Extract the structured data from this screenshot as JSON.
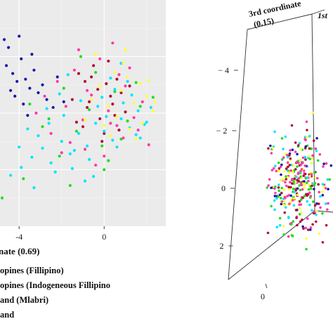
{
  "chart_data": [
    {
      "type": "scatter",
      "xlabel": "nate (0.69)",
      "x_ticks": [
        "-4",
        "0"
      ],
      "xlim": [
        -4.9,
        2.9
      ],
      "ylim": [
        -10,
        10
      ],
      "grid": true,
      "legend": {
        "placement": "bottom-left",
        "entries": [
          {
            "label": "opines (Fillipino)",
            "color": "#ff3aa8"
          },
          {
            "label": "opines (Indogeneous Fillipino",
            "color": "#22dd22"
          },
          {
            "label": "and (Mlabri)",
            "color": "#00e5ff"
          },
          {
            "label": "and",
            "color": "#ffff33"
          }
        ]
      },
      "series": [
        {
          "color": "#1a1aa6",
          "x": [
            -4.7,
            -4.5,
            -4.6,
            -4.3,
            -4.1,
            -3.9,
            -3.7,
            -3.5,
            -3.3,
            -3.1,
            -2.9,
            -2.7,
            -3.8,
            -4.2,
            -3.4,
            -4.0,
            -2.4,
            -4.4,
            -3.6,
            -2.2,
            -1.9
          ],
          "y": [
            6.5,
            5.8,
            4.2,
            3.5,
            2.8,
            4.8,
            3.0,
            2.2,
            3.8,
            1.8,
            2.5,
            1.2,
            0.8,
            1.5,
            5.2,
            6.8,
            0.5,
            2.0,
            -0.2,
            3.2,
            1.0
          ]
        },
        {
          "color": "#b0103a",
          "x": [
            -1.2,
            -0.9,
            -0.6,
            -0.3,
            0.1,
            0.3,
            0.6,
            -1.5,
            -0.8,
            0.4,
            0.8,
            -0.2,
            -1.0,
            0.0,
            0.5,
            -0.5,
            1.0,
            -1.3,
            0.2,
            0.7,
            -0.7,
            1.2,
            -0.1
          ],
          "y": [
            3.5,
            2.8,
            3.2,
            2.1,
            2.6,
            1.5,
            3.0,
            1.2,
            0.5,
            0.8,
            1.8,
            -0.5,
            -1.2,
            -1.8,
            -0.2,
            4.2,
            0.1,
            -0.8,
            4.6,
            -1.5,
            1.0,
            2.4,
            -2.5
          ]
        },
        {
          "color": "#ff3aa8",
          "x": [
            -2.8,
            -2.2,
            -1.8,
            -1.4,
            -1.0,
            -0.6,
            -0.2,
            0.2,
            0.6,
            1.0,
            1.4,
            1.8,
            -2.5,
            -1.6,
            -0.9,
            0.0,
            0.9,
            1.6,
            -1.2,
            0.4,
            -0.4,
            1.2,
            -2.0,
            0.7,
            -3.2,
            2.1,
            -0.8,
            0.3
          ],
          "y": [
            1.5,
            2.8,
            0.6,
            3.8,
            -0.6,
            1.6,
            4.8,
            0.2,
            -1.1,
            2.4,
            -0.4,
            1.0,
            -1.8,
            -2.6,
            -3.2,
            -3.8,
            -2.2,
            -1.5,
            5.6,
            6.2,
            -4.6,
            4.0,
            -3.5,
            3.4,
            0.0,
            -2.8,
            2.0,
            -0.9
          ]
        },
        {
          "color": "#22dd22",
          "x": [
            -3.5,
            -2.6,
            -1.9,
            -1.3,
            -0.7,
            -0.1,
            0.5,
            1.1,
            1.7,
            -2.1,
            -1.1,
            0.8,
            1.5,
            -0.4,
            0.2,
            -2.9,
            -3.8,
            2.3,
            -1.6,
            0.0,
            -4.8
          ],
          "y": [
            0.8,
            -0.5,
            2.2,
            -1.6,
            0.3,
            -2.9,
            1.9,
            -0.7,
            0.6,
            -3.8,
            5.0,
            -2.3,
            2.7,
            3.6,
            -4.2,
            -1.2,
            -5.8,
            1.4,
            -6.4,
            -5.0,
            -7.5
          ]
        },
        {
          "color": "#00e5ff",
          "x": [
            -4.4,
            -3.9,
            -3.4,
            -2.9,
            -2.5,
            -2.0,
            -1.6,
            -1.2,
            -0.8,
            -0.4,
            0.0,
            0.4,
            0.8,
            1.2,
            1.6,
            2.0,
            -3.1,
            -2.3,
            -1.5,
            -0.7,
            0.1,
            0.9,
            1.7,
            -2.7,
            -1.9,
            -1.1,
            -0.3,
            0.5,
            1.3,
            -3.6,
            -2.1,
            -0.9,
            0.3,
            1.1,
            -1.4,
            -0.5,
            0.6,
            2.2,
            -3.3,
            -1.7,
            -0.1,
            1.5,
            -4.0,
            -2.6,
            0.8,
            1.9
          ],
          "y": [
            -5.5,
            -4.8,
            -3.9,
            -3.1,
            -4.4,
            -2.5,
            -3.6,
            -1.8,
            -2.9,
            -0.9,
            -1.6,
            -2.4,
            -0.5,
            -1.3,
            0.2,
            -0.8,
            -2.0,
            -5.2,
            -4.9,
            -4.1,
            -0.3,
            0.9,
            -2.2,
            0.4,
            -0.2,
            1.1,
            0.6,
            2.1,
            1.6,
            -1.4,
            1.7,
            -6.0,
            3.1,
            2.8,
            -3.3,
            -5.6,
            -3.0,
            0.5,
            -6.6,
            3.4,
            1.4,
            -1.9,
            -3.0,
            -0.9,
            4.4,
            -1.0
          ]
        },
        {
          "color": "#ffff33",
          "x": [
            -0.6,
            -0.2,
            0.2,
            0.5,
            0.8,
            1.1,
            1.4,
            1.7,
            2.0,
            2.3,
            -0.9,
            0.0,
            0.6,
            1.2,
            1.8,
            2.4,
            -0.4,
            0.9,
            1.5,
            2.1,
            0.3,
            1.0
          ],
          "y": [
            1.2,
            2.4,
            0.6,
            3.6,
            2.0,
            3.2,
            0.9,
            2.6,
            1.5,
            0.2,
            -0.6,
            -1.1,
            -0.3,
            -1.4,
            -0.9,
            1.0,
            5.2,
            4.4,
            -2.3,
            2.9,
            -2.0,
            5.6
          ]
        }
      ]
    },
    {
      "type": "scatter",
      "projection": "3d",
      "axis_titles": [
        "3rd coordinate",
        "(0.15)",
        "1st"
      ],
      "y_ticks": [
        "− 4",
        "− 2",
        "0",
        "2"
      ],
      "y_values": [
        -4,
        -2,
        0,
        2
      ],
      "x_ticks": [
        "0"
      ],
      "zlim": [
        -5,
        3.5
      ],
      "point_cloud": {
        "center": [
          0.5,
          -0.8
        ],
        "colors": [
          "#ff3aa8",
          "#22dd22",
          "#00e5ff",
          "#ffff33",
          "#b0103a",
          "#1a1aa6"
        ]
      }
    }
  ]
}
